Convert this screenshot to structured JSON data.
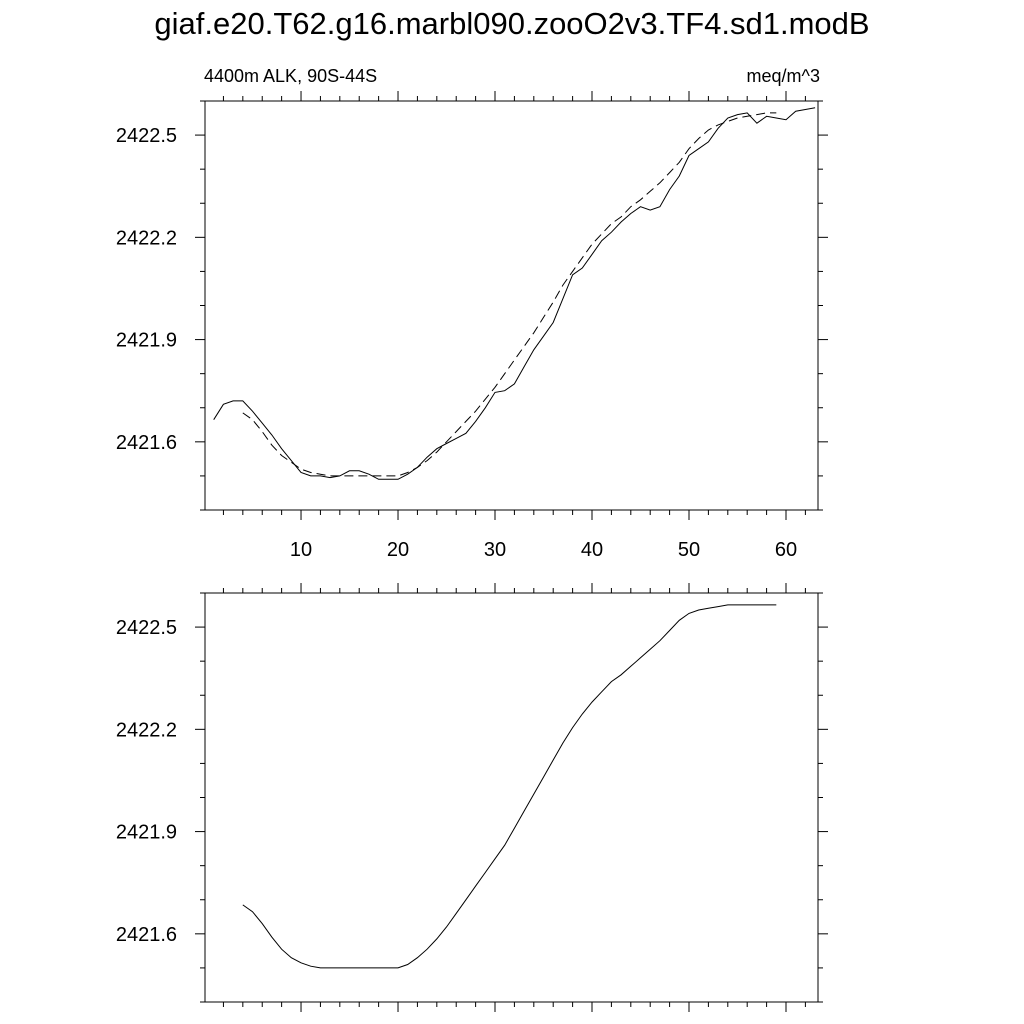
{
  "title": "giaf.e20.T62.g16.marbl090.zooO2v3.TF4.sd1.modB",
  "subtitle_left": "4400m ALK, 90S-44S",
  "subtitle_right": "meq/m^3",
  "chart_data": [
    {
      "type": "line",
      "title": "giaf.e20.T62.g16.marbl090.zooO2v3.TF4.sd1.modB",
      "subtitle_left": "4400m ALK, 90S-44S",
      "subtitle_right": "meq/m^3",
      "xlim": [
        0.1,
        63.3
      ],
      "ylim": [
        2421.4,
        2422.6
      ],
      "xticks": [
        10,
        20,
        30,
        40,
        50,
        60
      ],
      "yticks": [
        2421.6,
        2421.9,
        2422.2,
        2422.5
      ],
      "ytick_labels": [
        "2421.6",
        "2421.9",
        "2422.2",
        "2422.5"
      ],
      "xtick_labels": [
        "10",
        "20",
        "30",
        "40",
        "50",
        "60"
      ],
      "grid": false,
      "series": [
        {
          "style": "solid",
          "x": [
            1,
            2,
            3,
            4,
            5,
            6,
            7,
            8,
            9,
            10,
            11,
            12,
            13,
            14,
            15,
            16,
            17,
            18,
            19,
            20,
            21,
            22,
            23,
            24,
            25,
            26,
            27,
            28,
            29,
            30,
            31,
            32,
            33,
            34,
            35,
            36,
            37,
            38,
            39,
            40,
            41,
            42,
            43,
            44,
            45,
            46,
            47,
            48,
            49,
            50,
            51,
            52,
            53,
            54,
            55,
            56,
            57,
            58,
            59,
            60,
            61,
            62,
            63
          ],
          "values": [
            2421.665,
            2421.71,
            2421.72,
            2421.72,
            2421.69,
            2421.655,
            2421.62,
            2421.58,
            2421.545,
            2421.51,
            2421.5,
            2421.5,
            2421.495,
            2421.5,
            2421.515,
            2421.515,
            2421.505,
            2421.49,
            2421.49,
            2421.49,
            2421.505,
            2421.525,
            2421.555,
            2421.58,
            2421.595,
            2421.61,
            2421.625,
            2421.66,
            2421.7,
            2421.745,
            2421.75,
            2421.77,
            2421.82,
            2421.87,
            2421.91,
            2421.95,
            2422.02,
            2422.09,
            2422.11,
            2422.15,
            2422.19,
            2422.215,
            2422.245,
            2422.27,
            2422.29,
            2422.28,
            2422.29,
            2422.34,
            2422.38,
            2422.44,
            2422.46,
            2422.48,
            2422.52,
            2422.55,
            2422.56,
            2422.565,
            2422.535,
            2422.555,
            2422.55,
            2422.545,
            2422.57,
            2422.575,
            2422.58
          ]
        },
        {
          "style": "dashed",
          "x": [
            4,
            5,
            6,
            7,
            8,
            9,
            10,
            11,
            12,
            13,
            14,
            15,
            16,
            17,
            18,
            19,
            20,
            21,
            22,
            23,
            24,
            25,
            26,
            27,
            28,
            29,
            30,
            31,
            32,
            33,
            34,
            35,
            36,
            37,
            38,
            39,
            40,
            41,
            42,
            43,
            44,
            45,
            46,
            47,
            48,
            49,
            50,
            51,
            52,
            53,
            54,
            55,
            56,
            57,
            58,
            59
          ],
          "values": [
            2421.685,
            2421.665,
            2421.63,
            2421.59,
            2421.56,
            2421.54,
            2421.52,
            2421.51,
            2421.505,
            2421.5,
            2421.5,
            2421.5,
            2421.5,
            2421.5,
            2421.5,
            2421.5,
            2421.5,
            2421.51,
            2421.525,
            2421.545,
            2421.57,
            2421.6,
            2421.63,
            2421.66,
            2421.69,
            2421.725,
            2421.76,
            2421.8,
            2421.84,
            2421.88,
            2421.92,
            2421.965,
            2422.01,
            2422.06,
            2422.1,
            2422.14,
            2422.18,
            2422.21,
            2422.24,
            2422.26,
            2422.29,
            2422.31,
            2422.335,
            2422.36,
            2422.39,
            2422.42,
            2422.46,
            2422.49,
            2422.515,
            2422.53,
            2422.54,
            2422.55,
            2422.555,
            2422.56,
            2422.565,
            2422.565
          ]
        }
      ]
    },
    {
      "type": "line",
      "xlim": [
        0.1,
        63.3
      ],
      "ylim": [
        2421.4,
        2422.6
      ],
      "xticks": [
        10,
        20,
        30,
        40,
        50,
        60
      ],
      "yticks": [
        2421.6,
        2421.9,
        2422.2,
        2422.5
      ],
      "ytick_labels": [
        "2421.6",
        "2421.9",
        "2422.2",
        "2422.5"
      ],
      "grid": false,
      "series": [
        {
          "style": "solid",
          "x": [
            4,
            5,
            6,
            7,
            8,
            9,
            10,
            11,
            12,
            13,
            14,
            15,
            16,
            17,
            18,
            19,
            20,
            21,
            22,
            23,
            24,
            25,
            26,
            27,
            28,
            29,
            30,
            31,
            32,
            33,
            34,
            35,
            36,
            37,
            38,
            39,
            40,
            41,
            42,
            43,
            44,
            45,
            46,
            47,
            48,
            49,
            50,
            51,
            52,
            53,
            54,
            55,
            56,
            57,
            58,
            59
          ],
          "values": [
            2421.685,
            2421.665,
            2421.63,
            2421.59,
            2421.555,
            2421.53,
            2421.515,
            2421.505,
            2421.5,
            2421.5,
            2421.5,
            2421.5,
            2421.5,
            2421.5,
            2421.5,
            2421.5,
            2421.5,
            2421.51,
            2421.53,
            2421.555,
            2421.585,
            2421.62,
            2421.66,
            2421.7,
            2421.74,
            2421.78,
            2421.82,
            2421.86,
            2421.91,
            2421.96,
            2422.01,
            2422.06,
            2422.11,
            2422.16,
            2422.205,
            2422.245,
            2422.28,
            2422.31,
            2422.34,
            2422.36,
            2422.385,
            2422.41,
            2422.435,
            2422.46,
            2422.49,
            2422.52,
            2422.54,
            2422.55,
            2422.555,
            2422.56,
            2422.565,
            2422.565,
            2422.565,
            2422.565,
            2422.565,
            2422.565
          ]
        }
      ]
    }
  ]
}
